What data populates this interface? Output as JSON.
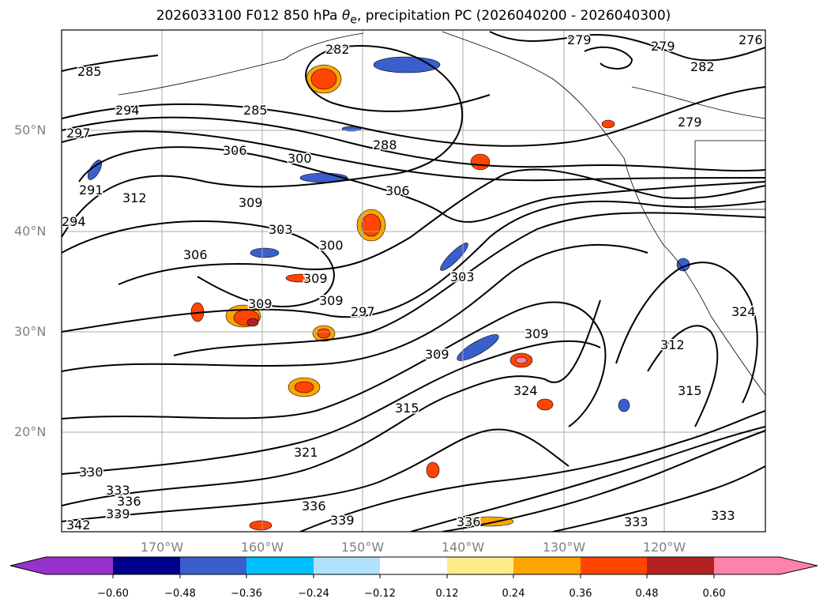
{
  "title": {
    "main": "2026033100 F012 850 hPa ",
    "theta": "θ",
    "sub": "e",
    "rest": ", precipitation PC (2026040200 - 2026040300)"
  },
  "lat_labels": [
    "50°N",
    "40°N",
    "30°N",
    "20°N"
  ],
  "lon_labels": [
    "170°W",
    "160°W",
    "150°W",
    "140°W",
    "130°W",
    "120°W"
  ],
  "colorbar": {
    "ticks": [
      "−0.60",
      "−0.48",
      "−0.36",
      "−0.24",
      "−0.12",
      "0.12",
      "0.24",
      "0.36",
      "0.48",
      "0.60"
    ],
    "colors": [
      "#9932CC",
      "#00008B",
      "#3A5FCD",
      "#00BFFF",
      "#B0E2FF",
      "#FFFFFF",
      "#FFEC8B",
      "#FFA500",
      "#FF4500",
      "#B22222",
      "#FF82AB"
    ]
  },
  "contour_labels": [
    "285",
    "282",
    "279",
    "279",
    "276",
    "282",
    "279",
    "285",
    "294",
    "297",
    "306",
    "300",
    "288",
    "291",
    "312",
    "294",
    "309",
    "306",
    "303",
    "300",
    "306",
    "309",
    "309",
    "303",
    "309",
    "297",
    "309",
    "309",
    "324",
    "315",
    "324",
    "312",
    "315",
    "321",
    "330",
    "333",
    "336",
    "339",
    "342",
    "336",
    "339",
    "336",
    "333",
    "333"
  ]
}
